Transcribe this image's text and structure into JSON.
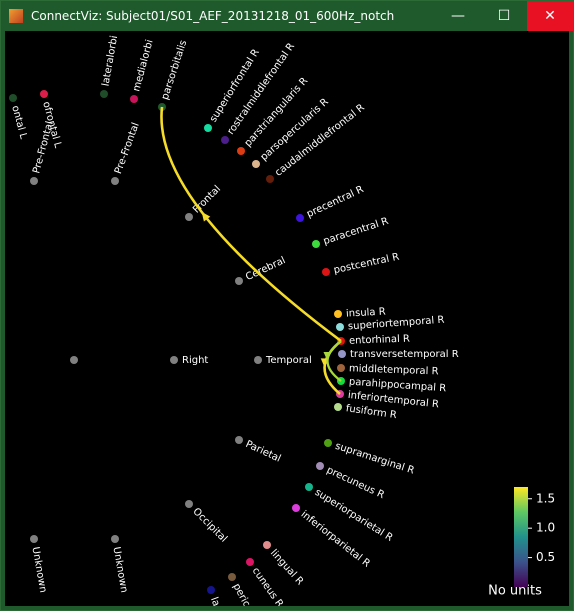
{
  "window": {
    "title": "ConnectViz: Subject01/S01_AEF_20131218_01_600Hz_notch"
  },
  "nodes": [
    {
      "label": "ontal L",
      "color": "#1f4d2a"
    },
    {
      "label": "ofrontal L",
      "color": "#dc1e4a"
    },
    {
      "label": "lateralorbi",
      "color": "#1f4d2a"
    },
    {
      "label": "medialorbi",
      "color": "#c8145a"
    },
    {
      "label": "parsorbitalis",
      "color": "#1f5a2a"
    },
    {
      "label": "superiorfrontal R",
      "color": "#14dca0"
    },
    {
      "label": "rostralmiddlefrontal R",
      "color": "#4b1e8c"
    },
    {
      "label": "parstriangularis R",
      "color": "#dc3c14"
    },
    {
      "label": "parsopercularis R",
      "color": "#dcb48c"
    },
    {
      "label": "caudalmiddlefrontal R",
      "color": "#641e0a"
    },
    {
      "label": "precentral R",
      "color": "#3c14dc"
    },
    {
      "label": "paracentral R",
      "color": "#3cdc3c"
    },
    {
      "label": "postcentral R",
      "color": "#dc1414"
    },
    {
      "label": "insula R",
      "color": "#ffc020"
    },
    {
      "label": "superiortemporal R",
      "color": "#8cdcdc"
    },
    {
      "label": "entorhinal R",
      "color": "#dc140a"
    },
    {
      "label": "transversetemporal R",
      "color": "#9696c8"
    },
    {
      "label": "middletemporal R",
      "color": "#a0643c"
    },
    {
      "label": "parahippocampal R",
      "color": "#14dc3c"
    },
    {
      "label": "inferiortemporal R",
      "color": "#dc3ca0"
    },
    {
      "label": "fusiform R",
      "color": "#b4dc8c"
    },
    {
      "label": "supramarginal R",
      "color": "#50a014"
    },
    {
      "label": "precuneus R",
      "color": "#a08cb4"
    },
    {
      "label": "superiorparietal R",
      "color": "#14b48c"
    },
    {
      "label": "inferiorparietal R",
      "color": "#dc3cdc"
    },
    {
      "label": "lingual R",
      "color": "#e18c8c"
    },
    {
      "label": "cuneus R",
      "color": "#dc1464"
    },
    {
      "label": "perica",
      "color": "#785a3c"
    },
    {
      "label": "la",
      "color": "#14148c"
    },
    {
      "label": "Pre-Frontal",
      "color": "#808080"
    },
    {
      "label": "Pre-Frontal",
      "color": "#808080"
    },
    {
      "label": "Frontal",
      "color": "#808080"
    },
    {
      "label": "Cerebral",
      "color": "#808080"
    },
    {
      "color": "#808080"
    },
    {
      "label": "Right",
      "color": "#808080"
    },
    {
      "label": "Temporal",
      "color": "#808080"
    },
    {
      "label": "Parietal",
      "color": "#808080"
    },
    {
      "label": "Occipital",
      "color": "#808080"
    },
    {
      "label": "Unknown",
      "color": "#808080"
    },
    {
      "label": "Unknown",
      "color": "#808080"
    }
  ],
  "links": [
    {
      "source": "entorhinal R",
      "target": "parsorbitalis",
      "value": 1.6,
      "color": "#f5dc28"
    },
    {
      "source": "entorhinal R",
      "target": "inferiortemporal R",
      "value": 1.6,
      "color": "#f5dc28"
    },
    {
      "source": "entorhinal R",
      "target": "parahippocampal R",
      "value": 1.3,
      "color": "#a8d83a"
    }
  ],
  "colorbar": {
    "label": "No units",
    "lim": [
      0,
      1.7
    ],
    "ticks": [
      {
        "value": 0.5,
        "label": "0.5"
      },
      {
        "value": 1,
        "label": "1.0"
      },
      {
        "value": 1.5,
        "label": "1.5"
      }
    ]
  }
}
